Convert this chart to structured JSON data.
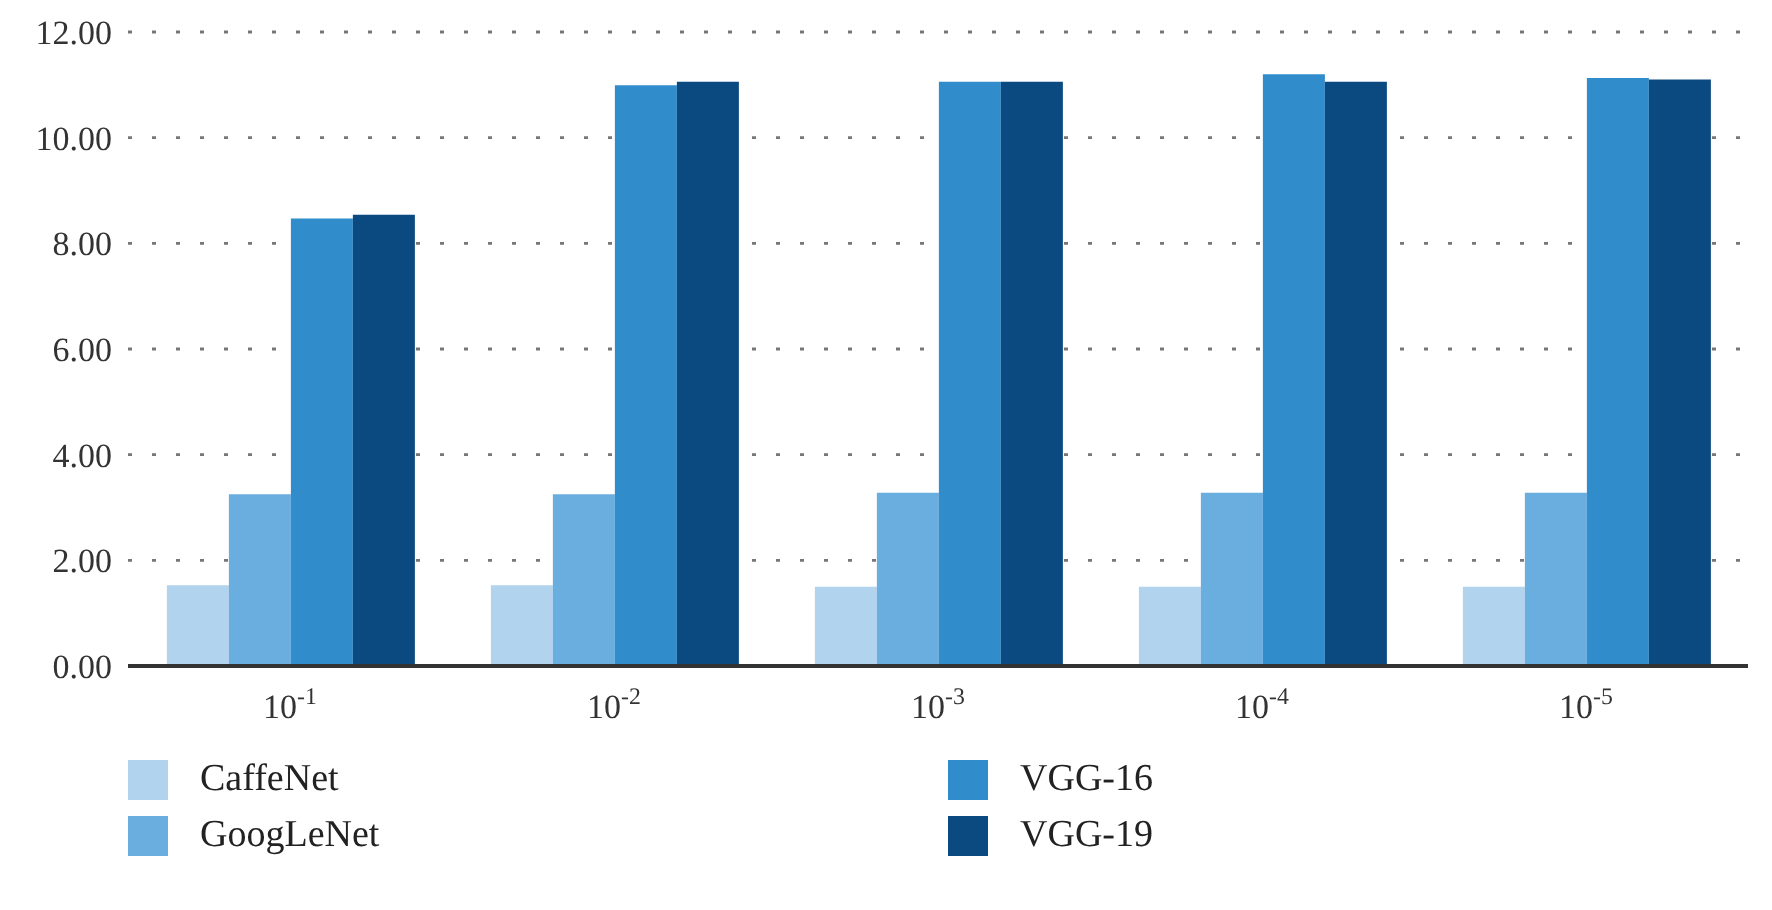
{
  "chart_data": {
    "type": "bar",
    "categories": [
      "10$^{-1}$",
      "10$^{-2}$",
      "10$^{-3}$",
      "10$^{-4}$",
      "10$^{-5}$"
    ],
    "series": [
      {
        "name": "CaffeNet",
        "color": "#b1d3ed",
        "values": [
          1.53,
          1.53,
          1.5,
          1.5,
          1.5
        ]
      },
      {
        "name": "GoogLeNet",
        "color": "#6aaedf",
        "values": [
          3.25,
          3.25,
          3.28,
          3.28,
          3.28
        ]
      },
      {
        "name": "VGG-16",
        "color": "#318ccb",
        "values": [
          8.47,
          10.99,
          11.06,
          11.2,
          11.13
        ]
      },
      {
        "name": "VGG-19",
        "color": "#0b4a80",
        "values": [
          8.54,
          11.06,
          11.06,
          11.06,
          11.1
        ]
      }
    ],
    "ylim": [
      0,
      12
    ],
    "yticks": [
      {
        "value": 0,
        "label": "0.00"
      },
      {
        "value": 2,
        "label": "2.00"
      },
      {
        "value": 4,
        "label": "4.00"
      },
      {
        "value": 6,
        "label": "6.00"
      },
      {
        "value": 8,
        "label": "8.00"
      },
      {
        "value": 10,
        "label": "10.00"
      },
      {
        "value": 12,
        "label": "12.00"
      }
    ],
    "grid": "y",
    "legend": "bottom"
  }
}
